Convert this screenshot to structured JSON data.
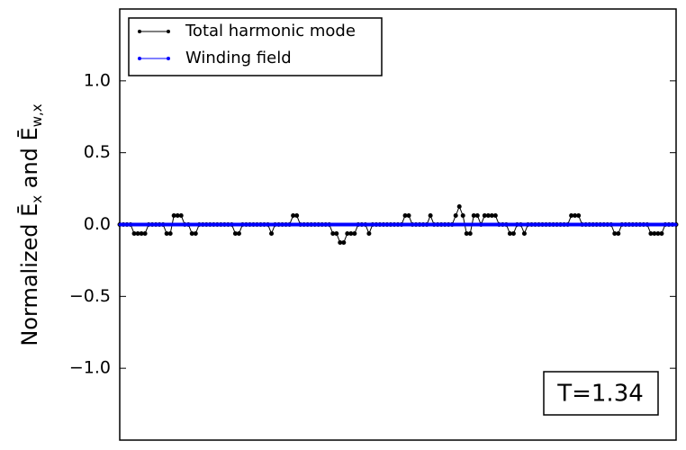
{
  "chart_data": {
    "type": "line",
    "ylabel": [
      "Normalized  Ē",
      "x",
      "  and  Ē",
      "w,x"
    ],
    "annotation": "T=1.34",
    "legend": "upper left",
    "xlim": [
      0,
      154
    ],
    "ylim": [
      -1.5,
      1.5
    ],
    "yticks": [
      {
        "value": -1,
        "label": "−1.0"
      },
      {
        "value": -0.5,
        "label": "−0.5"
      },
      {
        "value": 0,
        "label": "0.0"
      },
      0.5,
      {
        "value": 1,
        "label": "1.0"
      }
    ],
    "series": [
      {
        "name": "Total harmonic mode",
        "color": "#000000",
        "values": [
          0,
          0,
          0,
          0,
          -0.0625,
          -0.0625,
          -0.0625,
          -0.0625,
          0,
          0,
          0,
          0,
          0,
          -0.0625,
          -0.0625,
          0.0625,
          0.0625,
          0.0625,
          0,
          0,
          -0.0625,
          -0.0625,
          0,
          0,
          0,
          0,
          0,
          0,
          0,
          0,
          0,
          0,
          -0.0625,
          -0.0625,
          0,
          0,
          0,
          0,
          0,
          0,
          0,
          0,
          -0.0625,
          0,
          0,
          0,
          0,
          0,
          0.0625,
          0.0625,
          0,
          0,
          0,
          0,
          0,
          0,
          0,
          0,
          0,
          -0.0625,
          -0.0625,
          -0.125,
          -0.125,
          -0.0625,
          -0.0625,
          -0.0625,
          0,
          0,
          0,
          -0.0625,
          0,
          0,
          0,
          0,
          0,
          0,
          0,
          0,
          0,
          0.0625,
          0.0625,
          0,
          0,
          0,
          0,
          0,
          0.0625,
          0,
          0,
          0,
          0,
          0,
          0,
          0.0625,
          0.125,
          0.0625,
          -0.0625,
          -0.0625,
          0.0625,
          0.0625,
          0,
          0.0625,
          0.0625,
          0.0625,
          0.0625,
          0,
          0,
          0,
          -0.0625,
          -0.0625,
          0,
          0,
          -0.0625,
          0,
          0,
          0,
          0,
          0,
          0,
          0,
          0,
          0,
          0,
          0,
          0,
          0.0625,
          0.0625,
          0.0625,
          0,
          0,
          0,
          0,
          0,
          0,
          0,
          0,
          0,
          -0.0625,
          -0.0625,
          0,
          0,
          0,
          0,
          0,
          0,
          0,
          0,
          -0.0625,
          -0.0625,
          -0.0625,
          -0.0625,
          0,
          0,
          0,
          0
        ]
      },
      {
        "name": "Winding field",
        "color": "#0000ff",
        "values": [
          0,
          0,
          0,
          0,
          0,
          0,
          0,
          0,
          0,
          0,
          0,
          0,
          0,
          0,
          0,
          0,
          0,
          0,
          0,
          0,
          0,
          0,
          0,
          0,
          0,
          0,
          0,
          0,
          0,
          0,
          0,
          0,
          0,
          0,
          0,
          0,
          0,
          0,
          0,
          0,
          0,
          0,
          0,
          0,
          0,
          0,
          0,
          0,
          0,
          0,
          0,
          0,
          0,
          0,
          0,
          0,
          0,
          0,
          0,
          0,
          0,
          0,
          0,
          0,
          0,
          0,
          0,
          0,
          0,
          0,
          0,
          0,
          0,
          0,
          0,
          0,
          0,
          0,
          0,
          0,
          0,
          0,
          0,
          0,
          0,
          0,
          0,
          0,
          0,
          0,
          0,
          0,
          0,
          0,
          0,
          0,
          0,
          0,
          0,
          0,
          0,
          0,
          0,
          0,
          0,
          0,
          0,
          0,
          0,
          0,
          0,
          0,
          0,
          0,
          0,
          0,
          0,
          0,
          0,
          0,
          0,
          0,
          0,
          0,
          0,
          0,
          0,
          0,
          0,
          0,
          0,
          0,
          0,
          0,
          0,
          0,
          0,
          0,
          0,
          0,
          0,
          0,
          0,
          0,
          0,
          0,
          0,
          0,
          0,
          0,
          0,
          0,
          0,
          0,
          0
        ]
      }
    ]
  }
}
